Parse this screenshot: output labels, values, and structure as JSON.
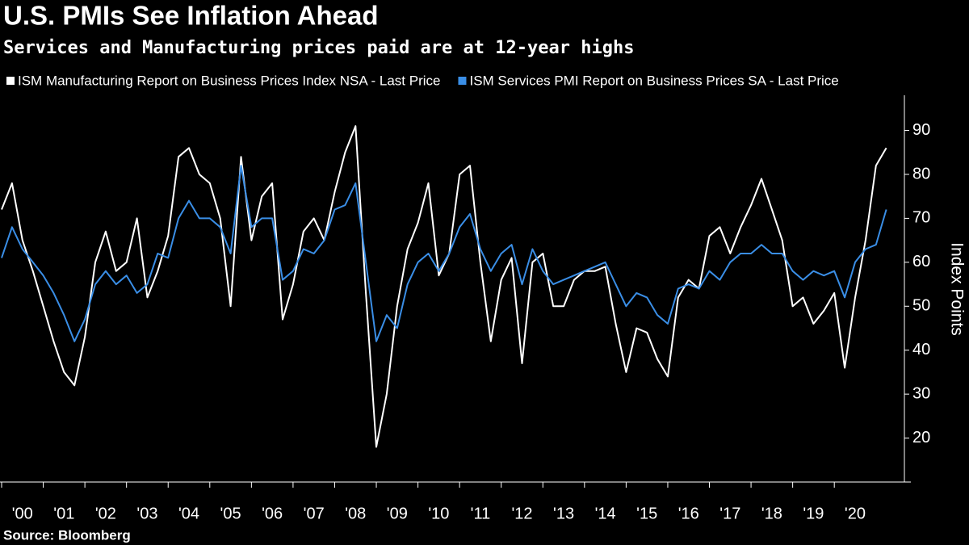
{
  "chart_data": {
    "type": "line",
    "title": "U.S. PMIs See Inflation Ahead",
    "subtitle": "Services and Manufacturing prices paid are at 12-year highs",
    "y_label": "Index Points",
    "source": "Source: Bloomberg",
    "x": [
      2000,
      2000.25,
      2000.5,
      2000.75,
      2001,
      2001.25,
      2001.5,
      2001.75,
      2002,
      2002.25,
      2002.5,
      2002.75,
      2003,
      2003.25,
      2003.5,
      2003.75,
      2004,
      2004.25,
      2004.5,
      2004.75,
      2005,
      2005.25,
      2005.5,
      2005.75,
      2006,
      2006.25,
      2006.5,
      2006.75,
      2007,
      2007.25,
      2007.5,
      2007.75,
      2008,
      2008.25,
      2008.5,
      2008.75,
      2009,
      2009.25,
      2009.5,
      2009.75,
      2010,
      2010.25,
      2010.5,
      2010.75,
      2011,
      2011.25,
      2011.5,
      2011.75,
      2012,
      2012.25,
      2012.5,
      2012.75,
      2013,
      2013.25,
      2013.5,
      2013.75,
      2014,
      2014.25,
      2014.5,
      2014.75,
      2015,
      2015.25,
      2015.5,
      2015.75,
      2016,
      2016.25,
      2016.5,
      2016.75,
      2017,
      2017.25,
      2017.5,
      2017.75,
      2018,
      2018.25,
      2018.5,
      2018.75,
      2019,
      2019.25,
      2019.5,
      2019.75,
      2020,
      2020.25,
      2020.5,
      2020.75,
      2021,
      2021.25
    ],
    "series": [
      {
        "name": "ISM Manufacturing Report on Business Prices Index NSA - Last Price",
        "color": "#ffffff",
        "values": [
          72,
          78,
          65,
          58,
          50,
          42,
          35,
          32,
          43,
          60,
          67,
          58,
          60,
          70,
          52,
          58,
          66,
          84,
          86,
          80,
          78,
          70,
          50,
          84,
          65,
          75,
          78,
          47,
          55,
          67,
          70,
          65,
          76,
          85,
          91,
          53,
          18,
          30,
          50,
          63,
          69,
          78,
          57,
          62,
          80,
          82,
          60,
          42,
          56,
          61,
          37,
          60,
          62,
          50,
          50,
          56,
          58,
          58,
          59,
          46,
          35,
          45,
          44,
          38,
          34,
          52,
          56,
          54,
          66,
          68,
          62,
          68,
          73,
          79,
          72,
          65,
          50,
          52,
          46,
          49,
          53,
          36,
          52,
          65,
          82,
          86
        ]
      },
      {
        "name": "ISM Services PMI Report on Business Prices SA - Last Price",
        "color": "#3a8ee6",
        "values": [
          61,
          68,
          63,
          60,
          57,
          53,
          48,
          42,
          47,
          55,
          58,
          55,
          57,
          53,
          55,
          62,
          61,
          70,
          74,
          70,
          70,
          68,
          62,
          82,
          68,
          70,
          70,
          56,
          58,
          63,
          62,
          65,
          72,
          73,
          78,
          60,
          42,
          48,
          45,
          55,
          60,
          62,
          58,
          62,
          68,
          71,
          63,
          58,
          62,
          64,
          55,
          63,
          58,
          55,
          56,
          57,
          58,
          59,
          60,
          55,
          50,
          53,
          52,
          48,
          46,
          54,
          55,
          54,
          58,
          56,
          60,
          62,
          62,
          64,
          62,
          62,
          58,
          56,
          58,
          57,
          58,
          52,
          60,
          63,
          64,
          72
        ]
      }
    ],
    "xlim": [
      2000,
      2021.8
    ],
    "xticks": [
      {
        "value": 2000,
        "label": "'00"
      },
      {
        "value": 2001,
        "label": "'01"
      },
      {
        "value": 2002,
        "label": "'02"
      },
      {
        "value": 2003,
        "label": "'03"
      },
      {
        "value": 2004,
        "label": "'04"
      },
      {
        "value": 2005,
        "label": "'05"
      },
      {
        "value": 2006,
        "label": "'06"
      },
      {
        "value": 2007,
        "label": "'07"
      },
      {
        "value": 2008,
        "label": "'08"
      },
      {
        "value": 2009,
        "label": "'09"
      },
      {
        "value": 2010,
        "label": "'10"
      },
      {
        "value": 2011,
        "label": "'11"
      },
      {
        "value": 2012,
        "label": "'12"
      },
      {
        "value": 2013,
        "label": "'13"
      },
      {
        "value": 2014,
        "label": "'14"
      },
      {
        "value": 2015,
        "label": "'15"
      },
      {
        "value": 2016,
        "label": "'16"
      },
      {
        "value": 2017,
        "label": "'17"
      },
      {
        "value": 2018,
        "label": "'18"
      },
      {
        "value": 2019,
        "label": "'19"
      },
      {
        "value": 2020,
        "label": "'20"
      }
    ],
    "ylim": [
      10,
      98
    ],
    "yticks": [
      20,
      30,
      40,
      50,
      60,
      70,
      80,
      90
    ]
  }
}
